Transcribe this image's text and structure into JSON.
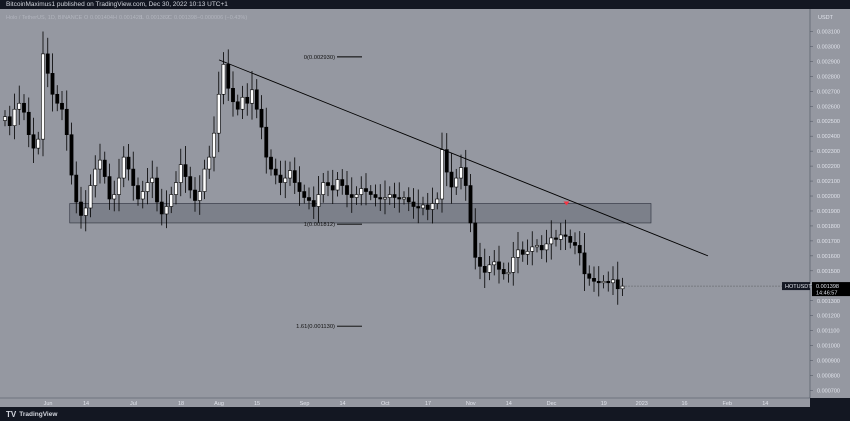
{
  "header": {
    "publish_line": "BitcoinMaximus1 published on TradingView.com, Dec 30, 2022 10:13 UTC+1",
    "symbol_title": "Holo / TetherUS, 1D, BINANCE",
    "ohlc": {
      "o_label": "O",
      "o": "0.001404",
      "h_label": "H",
      "h": "0.001428",
      "l_label": "L",
      "l": "0.001382",
      "c_label": "C",
      "c": "0.001398",
      "change": "−0.000006 (−0.43%)"
    }
  },
  "brand": {
    "logo_mark": "TV",
    "logo_text": "TradingView"
  },
  "chart_data": {
    "type": "candlestick",
    "x_tick_labels": [
      {
        "label": "Jun",
        "i": 8
      },
      {
        "label": "14",
        "i": 16
      },
      {
        "label": "Jul",
        "i": 26
      },
      {
        "label": "18",
        "i": 36
      },
      {
        "label": "Aug",
        "i": 44
      },
      {
        "label": "15",
        "i": 52
      },
      {
        "label": "Sep",
        "i": 62
      },
      {
        "label": "14",
        "i": 70
      },
      {
        "label": "Oct",
        "i": 79
      },
      {
        "label": "17",
        "i": 88
      },
      {
        "label": "Nov",
        "i": 97
      },
      {
        "label": "14",
        "i": 105
      },
      {
        "label": "Dec",
        "i": 114
      },
      {
        "label": "19",
        "i": 125
      },
      {
        "label": "2023",
        "i": 133
      },
      {
        "label": "16",
        "i": 142
      },
      {
        "label": "Feb",
        "i": 151
      },
      {
        "label": "14",
        "i": 159
      }
    ],
    "y_axis": {
      "unit_label": "USDT",
      "tick_labels": [
        "0.003100",
        "0.003000",
        "0.002900",
        "0.002800",
        "0.002700",
        "0.002600",
        "0.002500",
        "0.002400",
        "0.002300",
        "0.002200",
        "0.002100",
        "0.002000",
        "0.001900",
        "0.001800",
        "0.001700",
        "0.001600",
        "0.001500",
        "0.001400",
        "0.001300",
        "0.001200",
        "0.001100",
        "0.001000",
        "0.000900",
        "0.000800",
        "0.000700"
      ],
      "range": [
        0.00065,
        0.00325
      ]
    },
    "series_name": "HOTUSDT",
    "last_price": "0.001398",
    "countdown": "14:46:57",
    "closes": [
      0.00253,
      0.00247,
      0.00258,
      0.00262,
      0.00256,
      0.00241,
      0.00232,
      0.00238,
      0.00295,
      0.00282,
      0.00268,
      0.00262,
      0.00258,
      0.00241,
      0.00214,
      0.00196,
      0.00187,
      0.00192,
      0.00207,
      0.00218,
      0.00224,
      0.00213,
      0.00198,
      0.00201,
      0.00212,
      0.00226,
      0.00218,
      0.00207,
      0.00198,
      0.00203,
      0.00209,
      0.00212,
      0.00196,
      0.00188,
      0.00193,
      0.00201,
      0.00209,
      0.00221,
      0.00213,
      0.00204,
      0.00197,
      0.00203,
      0.00218,
      0.00226,
      0.00242,
      0.00268,
      0.00288,
      0.00272,
      0.00263,
      0.00258,
      0.00266,
      0.00262,
      0.00271,
      0.00258,
      0.00246,
      0.00226,
      0.00218,
      0.00214,
      0.00209,
      0.00212,
      0.00217,
      0.00209,
      0.00203,
      0.00199,
      0.00197,
      0.00193,
      0.00201,
      0.00209,
      0.00207,
      0.00204,
      0.00211,
      0.00207,
      0.00201,
      0.00199,
      0.00201,
      0.00205,
      0.00203,
      0.00201,
      0.00199,
      0.00198,
      0.00199,
      0.00201,
      0.00199,
      0.00198,
      0.00199,
      0.00196,
      0.00193,
      0.00192,
      0.00194,
      0.00191,
      0.00195,
      0.00198,
      0.00231,
      0.00216,
      0.00206,
      0.00212,
      0.00219,
      0.00207,
      0.00182,
      0.00159,
      0.00153,
      0.00149,
      0.00154,
      0.00156,
      0.00151,
      0.00148,
      0.00149,
      0.00159,
      0.00164,
      0.00161,
      0.00163,
      0.00166,
      0.00167,
      0.00164,
      0.00168,
      0.00172,
      0.00171,
      0.00174,
      0.00173,
      0.00169,
      0.00167,
      0.00162,
      0.00148,
      0.00145,
      0.00143,
      0.00142,
      0.00143,
      0.00142,
      0.00144,
      0.00138,
      0.001398
    ],
    "resistance_line": {
      "from": {
        "i": 44,
        "price": 0.00291
      },
      "to": {
        "i": 148,
        "price": 0.0016
      }
    },
    "support_zone": {
      "i_start": 1,
      "i_end": 136,
      "top": 0.00195,
      "bottom": 0.00182
    },
    "fib_levels": [
      {
        "label": "0(0.002930)",
        "price": 0.00293,
        "i_start": 58,
        "i_end": 70
      },
      {
        "label": "1(0.001812)",
        "price": 0.001812,
        "i_start": 58,
        "i_end": 70
      },
      {
        "label": "1.61(0.001130)",
        "price": 0.00113,
        "i_start": 57,
        "i_end": 70
      }
    ],
    "marker": {
      "i": 114,
      "price": 0.00195,
      "color": "#f23645"
    },
    "colors": {
      "background": "#9598a1",
      "candle": "#000000",
      "last_price_tag": "#000000",
      "zone": "#787b86"
    },
    "grid": false
  }
}
